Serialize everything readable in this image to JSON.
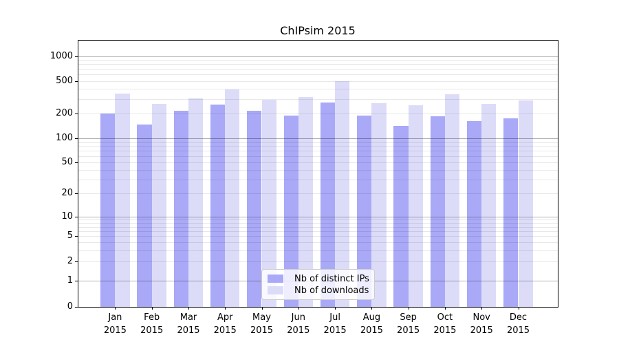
{
  "chart_data": {
    "type": "bar",
    "title": "ChIPsim 2015",
    "categories": [
      {
        "month": "Jan",
        "year": "2015"
      },
      {
        "month": "Feb",
        "year": "2015"
      },
      {
        "month": "Mar",
        "year": "2015"
      },
      {
        "month": "Apr",
        "year": "2015"
      },
      {
        "month": "May",
        "year": "2015"
      },
      {
        "month": "Jun",
        "year": "2015"
      },
      {
        "month": "Jul",
        "year": "2015"
      },
      {
        "month": "Aug",
        "year": "2015"
      },
      {
        "month": "Sep",
        "year": "2015"
      },
      {
        "month": "Oct",
        "year": "2015"
      },
      {
        "month": "Nov",
        "year": "2015"
      },
      {
        "month": "Dec",
        "year": "2015"
      }
    ],
    "series": [
      {
        "name": "Nb of distinct IPs",
        "color": "#a9a9f7",
        "values": [
          203,
          149,
          219,
          260,
          218,
          191,
          274,
          191,
          143,
          187,
          164,
          176
        ]
      },
      {
        "name": "Nb of downloads",
        "color": "#dcdcf9",
        "values": [
          352,
          265,
          310,
          398,
          298,
          320,
          505,
          271,
          257,
          350,
          266,
          290
        ]
      }
    ],
    "yscale": "symlog",
    "y_ticks": [
      0,
      1,
      2,
      5,
      10,
      20,
      50,
      100,
      200,
      500,
      1000
    ],
    "ylim": [
      0,
      1550
    ],
    "xlabel": "",
    "ylabel": "",
    "grid": true,
    "legend_position": "lower center"
  },
  "colors": {
    "background": "#ffffff",
    "spine": "#000000",
    "grid_major": "#b0b0b0",
    "grid_minor": "#e8e8e8",
    "bar_distinct_ips": "#a9a9f7",
    "bar_downloads": "#dcdcf9",
    "legend_border": "#cccccc"
  }
}
